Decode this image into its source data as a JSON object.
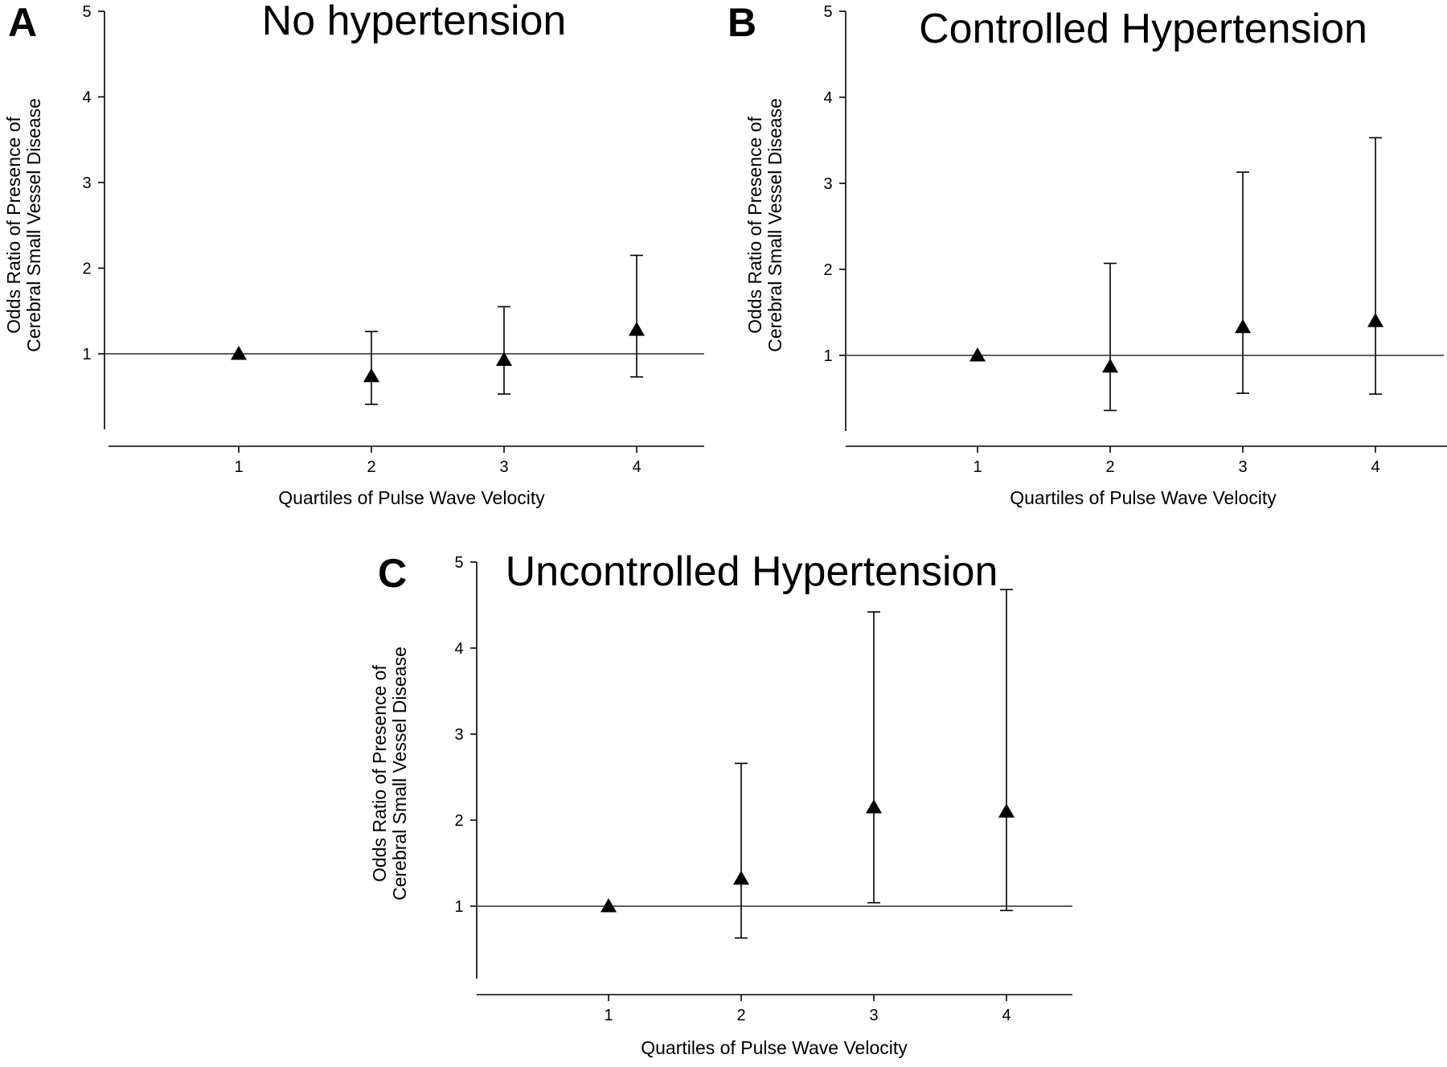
{
  "chart_data": [
    {
      "panel": "A",
      "type": "scatter",
      "title": "No hypertension",
      "xlabel": "Quartiles of Pulse Wave Velocity",
      "ylabel": [
        "Odds Ratio of Presence of",
        "Cerebral Small Vessel Disease"
      ],
      "x": [
        1,
        2,
        3,
        4
      ],
      "y": [
        1.0,
        0.74,
        0.93,
        1.28
      ],
      "ci_low": [
        null,
        0.41,
        0.53,
        0.73
      ],
      "ci_high": [
        null,
        1.26,
        1.55,
        2.15
      ],
      "reference_line": 1,
      "xticks": [
        "1",
        "2",
        "3",
        "4"
      ],
      "yticks": [
        "1",
        "2",
        "3",
        "4",
        "5"
      ],
      "xlim": [
        0,
        4.5
      ],
      "ylim": [
        0.2,
        5
      ],
      "marker": "triangle",
      "color": "#000000"
    },
    {
      "panel": "B",
      "type": "scatter",
      "title": "Controlled Hypertension",
      "xlabel": "Quartiles of Pulse Wave Velocity",
      "ylabel": [
        "Odds Ratio of Presence of",
        "Cerebral Small Vessel Disease"
      ],
      "x": [
        1,
        2,
        3,
        4
      ],
      "y": [
        1.0,
        0.87,
        1.33,
        1.4
      ],
      "ci_low": [
        null,
        0.36,
        0.56,
        0.55
      ],
      "ci_high": [
        null,
        2.07,
        3.13,
        3.53
      ],
      "reference_line": 1,
      "xticks": [
        "1",
        "2",
        "3",
        "4"
      ],
      "yticks": [
        "1",
        "2",
        "3",
        "4",
        "5"
      ],
      "xlim": [
        0,
        4.5
      ],
      "ylim": [
        0.2,
        5
      ],
      "marker": "triangle",
      "color": "#000000"
    },
    {
      "panel": "C",
      "type": "scatter",
      "title": "Uncontrolled Hypertension",
      "xlabel": "Quartiles of Pulse Wave Velocity",
      "ylabel": [
        "Odds Ratio of Presence of",
        "Cerebral Small Vessel Disease"
      ],
      "x": [
        1,
        2,
        3,
        4
      ],
      "y": [
        1.0,
        1.32,
        2.15,
        2.1
      ],
      "ci_low": [
        null,
        0.63,
        1.04,
        0.95
      ],
      "ci_high": [
        null,
        2.66,
        4.42,
        4.68
      ],
      "reference_line": 1,
      "xticks": [
        "1",
        "2",
        "3",
        "4"
      ],
      "yticks": [
        "1",
        "2",
        "3",
        "4",
        "5"
      ],
      "xlim": [
        0,
        4.5
      ],
      "ylim": [
        0.2,
        5
      ],
      "marker": "triangle",
      "color": "#000000"
    }
  ]
}
